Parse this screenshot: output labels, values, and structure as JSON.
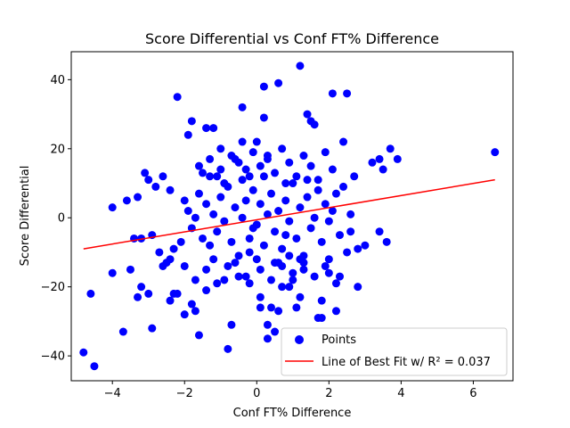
{
  "chart_data": {
    "type": "scatter",
    "title": "Score Differential vs Conf FT% Difference",
    "xlabel": "Conf FT% Difference",
    "ylabel": "Score Differential",
    "xlim": [
      -5.14,
      7.1
    ],
    "ylim": [
      -47.2,
      48.1
    ],
    "xticks": [
      -4,
      -2,
      0,
      2,
      4,
      6
    ],
    "yticks": [
      -40,
      -20,
      0,
      20,
      40
    ],
    "xtick_labels": [
      "−4",
      "−2",
      "0",
      "2",
      "4",
      "6"
    ],
    "ytick_labels": [
      "−40",
      "−20",
      "0",
      "20",
      "40"
    ],
    "grid": false,
    "legend_position": "lower right",
    "series": [
      {
        "name": "Points",
        "kind": "scatter",
        "color": "#0000ff",
        "points": [
          [
            -4.8,
            -39
          ],
          [
            -4.5,
            -43
          ],
          [
            -4.6,
            -22
          ],
          [
            -4.0,
            -16
          ],
          [
            -3.7,
            -33
          ],
          [
            -4.0,
            3
          ],
          [
            -3.6,
            5
          ],
          [
            -3.3,
            6
          ],
          [
            -3.4,
            -6
          ],
          [
            -3.2,
            -6
          ],
          [
            -3.5,
            -15
          ],
          [
            -3.2,
            -20
          ],
          [
            -3.3,
            -23
          ],
          [
            -3.0,
            -22
          ],
          [
            -2.9,
            -32
          ],
          [
            -3.0,
            11
          ],
          [
            -3.1,
            13
          ],
          [
            -2.8,
            9
          ],
          [
            -2.9,
            -5
          ],
          [
            -2.6,
            12
          ],
          [
            -2.7,
            -10
          ],
          [
            -2.5,
            -13
          ],
          [
            -2.4,
            -12
          ],
          [
            -2.3,
            -9
          ],
          [
            -2.6,
            -14
          ],
          [
            -2.3,
            -22
          ],
          [
            -2.4,
            -24
          ],
          [
            -2.2,
            -22
          ],
          [
            -2.2,
            35
          ],
          [
            -2.4,
            8
          ],
          [
            -2.0,
            -14
          ],
          [
            -2.1,
            -7
          ],
          [
            -2.0,
            -28
          ],
          [
            -1.8,
            -25
          ],
          [
            -1.7,
            -27
          ],
          [
            -1.8,
            28
          ],
          [
            -1.9,
            24
          ],
          [
            -1.6,
            -34
          ],
          [
            -1.4,
            -21
          ],
          [
            -1.4,
            26
          ],
          [
            -1.5,
            13
          ],
          [
            -1.2,
            26
          ],
          [
            -1.3,
            12
          ],
          [
            -1.1,
            12
          ],
          [
            -1.0,
            20
          ],
          [
            -0.9,
            -18
          ],
          [
            -0.8,
            -38
          ],
          [
            -0.7,
            -31
          ],
          [
            -0.6,
            17
          ],
          [
            -0.4,
            32
          ],
          [
            -0.4,
            22
          ],
          [
            -0.3,
            -17
          ],
          [
            -0.2,
            -10
          ],
          [
            -0.2,
            12
          ],
          [
            -0.1,
            -3
          ],
          [
            0.0,
            22
          ],
          [
            0.1,
            -23
          ],
          [
            0.1,
            -26
          ],
          [
            0.2,
            38
          ],
          [
            0.2,
            29
          ],
          [
            0.3,
            18
          ],
          [
            0.3,
            -31
          ],
          [
            0.3,
            -35
          ],
          [
            0.4,
            -26
          ],
          [
            0.5,
            -33
          ],
          [
            0.5,
            -13
          ],
          [
            0.6,
            39
          ],
          [
            0.6,
            -27
          ],
          [
            0.7,
            -20
          ],
          [
            0.8,
            -5
          ],
          [
            0.9,
            -11
          ],
          [
            0.9,
            -20
          ],
          [
            1.0,
            -16
          ],
          [
            1.1,
            -26
          ],
          [
            1.2,
            -23
          ],
          [
            1.2,
            44
          ],
          [
            1.3,
            -15
          ],
          [
            1.4,
            30
          ],
          [
            1.5,
            28
          ],
          [
            1.6,
            27
          ],
          [
            1.7,
            -29
          ],
          [
            1.8,
            -24
          ],
          [
            1.8,
            -29
          ],
          [
            2.0,
            -16
          ],
          [
            2.0,
            -12
          ],
          [
            2.1,
            36
          ],
          [
            2.2,
            -27
          ],
          [
            2.3,
            -17
          ],
          [
            2.5,
            36
          ],
          [
            2.5,
            -10
          ],
          [
            2.6,
            -4
          ],
          [
            2.8,
            -9
          ],
          [
            2.8,
            -20
          ],
          [
            3.0,
            -8
          ],
          [
            3.2,
            16
          ],
          [
            3.4,
            17
          ],
          [
            3.4,
            -4
          ],
          [
            3.5,
            14
          ],
          [
            3.6,
            -7
          ],
          [
            3.7,
            20
          ],
          [
            3.9,
            17
          ],
          [
            6.6,
            19
          ],
          [
            -2.0,
            5
          ],
          [
            -1.9,
            2
          ],
          [
            -1.8,
            -3
          ],
          [
            -1.7,
            0
          ],
          [
            -1.6,
            7
          ],
          [
            -1.5,
            -6
          ],
          [
            -1.4,
            4
          ],
          [
            -1.3,
            -8
          ],
          [
            -1.2,
            1
          ],
          [
            -1.1,
            -4
          ],
          [
            -1.0,
            6
          ],
          [
            -0.9,
            -1
          ],
          [
            -0.8,
            9
          ],
          [
            -0.7,
            -7
          ],
          [
            -0.6,
            3
          ],
          [
            -0.5,
            -11
          ],
          [
            -0.4,
            0
          ],
          [
            -0.3,
            5
          ],
          [
            -0.2,
            -6
          ],
          [
            -0.1,
            8
          ],
          [
            0.0,
            -2
          ],
          [
            0.1,
            4
          ],
          [
            0.2,
            -8
          ],
          [
            0.3,
            1
          ],
          [
            0.4,
            7
          ],
          [
            0.5,
            -4
          ],
          [
            0.6,
            2
          ],
          [
            0.7,
            -9
          ],
          [
            0.8,
            5
          ],
          [
            0.9,
            -1
          ],
          [
            1.0,
            10
          ],
          [
            1.1,
            -6
          ],
          [
            1.2,
            3
          ],
          [
            1.3,
            -11
          ],
          [
            1.4,
            6
          ],
          [
            1.5,
            -3
          ],
          [
            1.6,
            0
          ],
          [
            1.7,
            8
          ],
          [
            1.8,
            -7
          ],
          [
            1.9,
            4
          ],
          [
            2.0,
            -1
          ],
          [
            2.1,
            2
          ],
          [
            2.2,
            7
          ],
          [
            2.3,
            -5
          ],
          [
            2.4,
            9
          ],
          [
            2.6,
            1
          ],
          [
            -1.6,
            15
          ],
          [
            -1.3,
            17
          ],
          [
            -1.0,
            14
          ],
          [
            -0.7,
            18
          ],
          [
            -0.5,
            16
          ],
          [
            -0.3,
            14
          ],
          [
            -0.1,
            19
          ],
          [
            0.1,
            15
          ],
          [
            0.3,
            17
          ],
          [
            0.5,
            13
          ],
          [
            0.7,
            20
          ],
          [
            0.9,
            16
          ],
          [
            1.1,
            12
          ],
          [
            1.3,
            18
          ],
          [
            1.5,
            15
          ],
          [
            1.7,
            11
          ],
          [
            1.9,
            19
          ],
          [
            2.1,
            14
          ],
          [
            2.4,
            22
          ],
          [
            2.7,
            12
          ],
          [
            -1.7,
            -18
          ],
          [
            -1.4,
            -15
          ],
          [
            -1.1,
            -19
          ],
          [
            -0.8,
            -14
          ],
          [
            -0.5,
            -17
          ],
          [
            -0.2,
            -19
          ],
          [
            0.1,
            -15
          ],
          [
            0.4,
            -18
          ],
          [
            0.7,
            -14
          ],
          [
            1.0,
            -18
          ],
          [
            1.3,
            -13
          ],
          [
            1.6,
            -17
          ],
          [
            1.9,
            -14
          ],
          [
            2.2,
            -19
          ],
          [
            -0.9,
            10
          ],
          [
            -0.4,
            11
          ],
          [
            0.2,
            12
          ],
          [
            0.8,
            10
          ],
          [
            1.4,
            11
          ],
          [
            -1.2,
            -12
          ],
          [
            -0.6,
            -13
          ],
          [
            0.0,
            -12
          ],
          [
            0.6,
            -13
          ],
          [
            1.2,
            -12
          ]
        ]
      },
      {
        "name": "Line of Best Fit w/ R² = 0.037",
        "kind": "line",
        "color": "#ff0000",
        "points": [
          [
            -4.8,
            -9.0
          ],
          [
            6.6,
            11.0
          ]
        ]
      }
    ],
    "legend": [
      {
        "label": "Points",
        "marker": "circle"
      },
      {
        "label": "Line of Best Fit w/ R² = 0.037",
        "marker": "line"
      }
    ]
  }
}
